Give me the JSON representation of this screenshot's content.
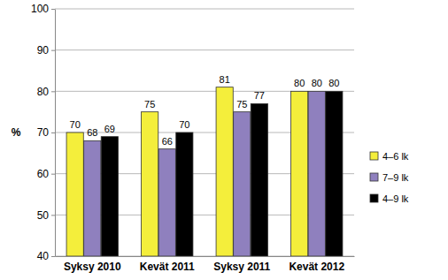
{
  "chart_data": {
    "type": "bar",
    "y_label": "%",
    "categories": [
      "Syksy 2010",
      "Kevät 2011",
      "Syksy 2011",
      "Kevät 2012"
    ],
    "series": [
      {
        "name": "4–6 lk",
        "color": "#f4ee3b",
        "values": [
          70,
          75,
          81,
          80
        ]
      },
      {
        "name": "7–9 lk",
        "color": "#8f80be",
        "values": [
          68,
          66,
          75,
          80
        ]
      },
      {
        "name": "4–9 lk",
        "color": "#000000",
        "values": [
          69,
          70,
          77,
          80
        ]
      }
    ],
    "ylim": [
      40,
      100
    ],
    "yticks": [
      40,
      50,
      60,
      70,
      80,
      90,
      100
    ],
    "grid": true,
    "legend": "right",
    "data_labels": true
  }
}
